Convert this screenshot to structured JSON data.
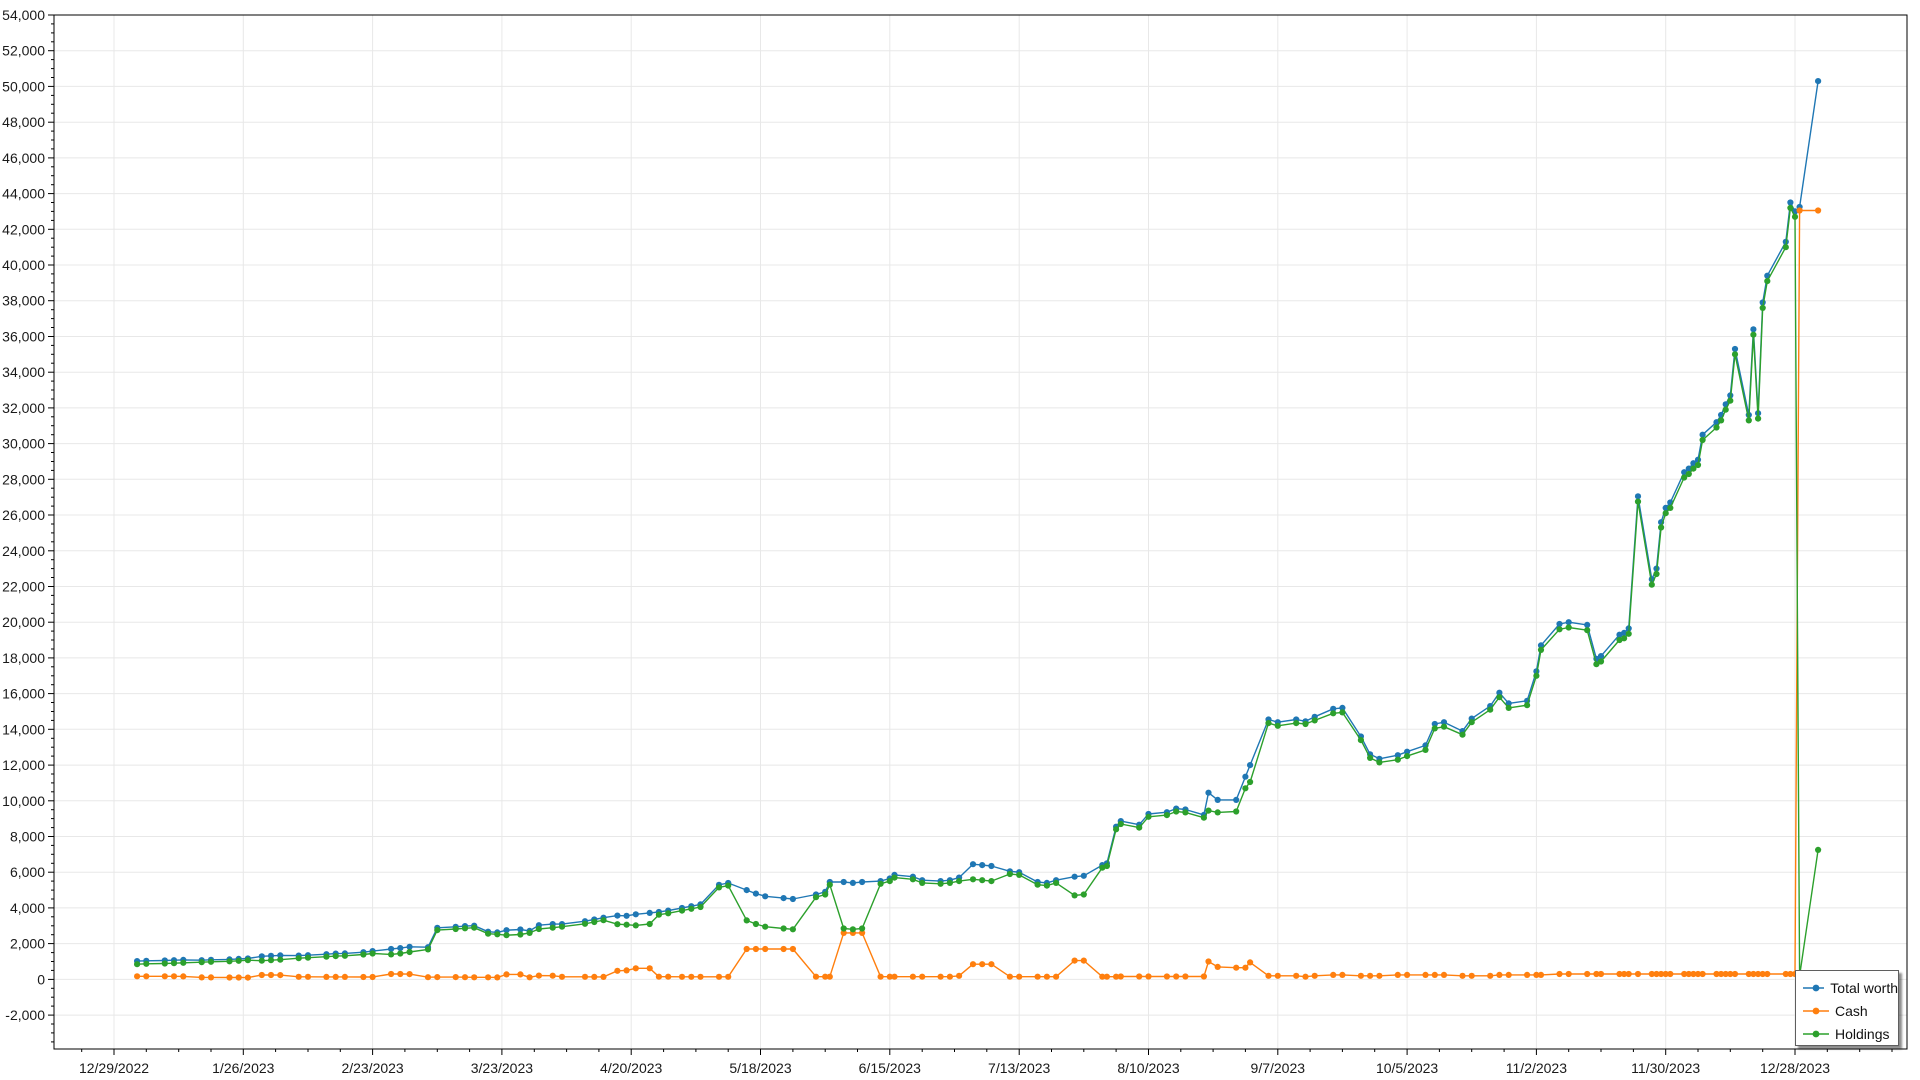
{
  "chart_data": {
    "type": "line",
    "title": "",
    "legend_position": "bottom-right",
    "grid": true,
    "background": "#ffffff",
    "grid_color": "#e8e8e8",
    "axis_color": "#000000",
    "x_axis": {
      "type": "date",
      "tick_labels": [
        "2022-12-29",
        "2023-01-26",
        "2023-02-23",
        "2023-03-23",
        "2023-04-20",
        "2023-05-18",
        "2023-06-15",
        "2023-07-13",
        "2023-08-10",
        "2023-09-07",
        "2023-10-05",
        "2023-11-02",
        "2023-11-30",
        "2023-12-28"
      ],
      "label_format": "M/D/YYYY",
      "major_step_days": 28,
      "minor_step_days": 7,
      "range_days_rel_first_label": [
        -13,
        388
      ]
    },
    "y_axis": {
      "min": -3900,
      "max": 54000,
      "grid_step": 2000,
      "minor_tick": 500,
      "label_min": -2000,
      "label_max": 54000,
      "label_format": "#,##0"
    },
    "dates": [
      "2023-01-03",
      "2023-01-05",
      "2023-01-09",
      "2023-01-11",
      "2023-01-13",
      "2023-01-17",
      "2023-01-19",
      "2023-01-23",
      "2023-01-25",
      "2023-01-27",
      "2023-01-30",
      "2023-02-01",
      "2023-02-03",
      "2023-02-07",
      "2023-02-09",
      "2023-02-13",
      "2023-02-15",
      "2023-02-17",
      "2023-02-21",
      "2023-02-23",
      "2023-02-27",
      "2023-03-01",
      "2023-03-03",
      "2023-03-07",
      "2023-03-09",
      "2023-03-13",
      "2023-03-15",
      "2023-03-17",
      "2023-03-20",
      "2023-03-22",
      "2023-03-24",
      "2023-03-27",
      "2023-03-29",
      "2023-03-31",
      "2023-04-03",
      "2023-04-05",
      "2023-04-10",
      "2023-04-12",
      "2023-04-14",
      "2023-04-17",
      "2023-04-19",
      "2023-04-21",
      "2023-04-24",
      "2023-04-26",
      "2023-04-28",
      "2023-05-01",
      "2023-05-03",
      "2023-05-05",
      "2023-05-09",
      "2023-05-11",
      "2023-05-15",
      "2023-05-17",
      "2023-05-19",
      "2023-05-23",
      "2023-05-25",
      "2023-05-30",
      "2023-06-01",
      "2023-06-02",
      "2023-06-05",
      "2023-06-07",
      "2023-06-09",
      "2023-06-13",
      "2023-06-15",
      "2023-06-16",
      "2023-06-20",
      "2023-06-22",
      "2023-06-26",
      "2023-06-28",
      "2023-06-30",
      "2023-07-03",
      "2023-07-05",
      "2023-07-07",
      "2023-07-11",
      "2023-07-13",
      "2023-07-17",
      "2023-07-19",
      "2023-07-21",
      "2023-07-25",
      "2023-07-27",
      "2023-07-31",
      "2023-08-01",
      "2023-08-03",
      "2023-08-04",
      "2023-08-08",
      "2023-08-10",
      "2023-08-14",
      "2023-08-16",
      "2023-08-18",
      "2023-08-22",
      "2023-08-23",
      "2023-08-25",
      "2023-08-29",
      "2023-08-31",
      "2023-09-01",
      "2023-09-05",
      "2023-09-07",
      "2023-09-11",
      "2023-09-13",
      "2023-09-15",
      "2023-09-19",
      "2023-09-21",
      "2023-09-25",
      "2023-09-27",
      "2023-09-29",
      "2023-10-03",
      "2023-10-05",
      "2023-10-09",
      "2023-10-11",
      "2023-10-13",
      "2023-10-17",
      "2023-10-19",
      "2023-10-23",
      "2023-10-25",
      "2023-10-27",
      "2023-10-31",
      "2023-11-02",
      "2023-11-03",
      "2023-11-07",
      "2023-11-09",
      "2023-11-13",
      "2023-11-15",
      "2023-11-16",
      "2023-11-20",
      "2023-11-21",
      "2023-11-22",
      "2023-11-24",
      "2023-11-27",
      "2023-11-28",
      "2023-11-29",
      "2023-11-30",
      "2023-12-01",
      "2023-12-04",
      "2023-12-05",
      "2023-12-06",
      "2023-12-07",
      "2023-12-08",
      "2023-12-11",
      "2023-12-12",
      "2023-12-13",
      "2023-12-14",
      "2023-12-15",
      "2023-12-18",
      "2023-12-19",
      "2023-12-20",
      "2023-12-21",
      "2023-12-22",
      "2023-12-26",
      "2023-12-27",
      "2023-12-28",
      "2023-12-29",
      "2024-01-02"
    ],
    "series": [
      {
        "name": "Total worth",
        "color": "#1f77b4",
        "values": [
          1020,
          1040,
          1055,
          1075,
          1090,
          1070,
          1095,
          1115,
          1145,
          1170,
          1290,
          1320,
          1340,
          1330,
          1355,
          1410,
          1440,
          1455,
          1520,
          1580,
          1700,
          1750,
          1825,
          1800,
          2885,
          2945,
          2980,
          3005,
          2670,
          2630,
          2750,
          2790,
          2715,
          3030,
          3095,
          3095,
          3255,
          3350,
          3450,
          3570,
          3560,
          3640,
          3720,
          3770,
          3850,
          3995,
          4095,
          4195,
          5295,
          5395,
          5000,
          4800,
          4650,
          4550,
          4500,
          4750,
          4900,
          5450,
          5450,
          5400,
          5450,
          5500,
          5650,
          5850,
          5750,
          5550,
          5500,
          5550,
          5700,
          6450,
          6400,
          6350,
          6050,
          6000,
          5450,
          5400,
          5550,
          5750,
          5800,
          6400,
          6500,
          8550,
          8860,
          8660,
          9260,
          9360,
          9560,
          9510,
          9210,
          10450,
          10050,
          10050,
          11350,
          12000,
          14550,
          14400,
          14550,
          14450,
          14700,
          15150,
          15200,
          13600,
          12600,
          12350,
          12550,
          12750,
          13100,
          14300,
          14400,
          13900,
          14600,
          15300,
          16050,
          15450,
          15600,
          17250,
          18700,
          19900,
          20000,
          19850,
          17950,
          18100,
          19300,
          19400,
          19650,
          27050,
          22400,
          23000,
          25600,
          26400,
          26700,
          28400,
          28600,
          28900,
          29100,
          30500,
          31200,
          31600,
          32200,
          32700,
          35300,
          31600,
          36400,
          31700,
          37900,
          39400,
          41300,
          43500,
          43000,
          43250,
          50300
        ]
      },
      {
        "name": "Cash",
        "color": "#ff7f0e",
        "values": [
          170,
          170,
          170,
          170,
          165,
          110,
          110,
          105,
          105,
          100,
          245,
          245,
          240,
          145,
          145,
          140,
          140,
          135,
          130,
          130,
          300,
          300,
          295,
          120,
          125,
          125,
          120,
          115,
          115,
          110,
          280,
          280,
          115,
          210,
          205,
          145,
          145,
          140,
          140,
          480,
          500,
          620,
          620,
          150,
          150,
          145,
          145,
          145,
          145,
          145,
          1700,
          1700,
          1700,
          1700,
          1700,
          150,
          150,
          150,
          2600,
          2600,
          2600,
          150,
          150,
          150,
          150,
          150,
          150,
          150,
          200,
          850,
          850,
          850,
          150,
          150,
          150,
          150,
          150,
          1050,
          1050,
          150,
          150,
          150,
          160,
          160,
          160,
          160,
          160,
          160,
          160,
          1000,
          700,
          650,
          650,
          950,
          200,
          200,
          200,
          150,
          200,
          250,
          250,
          200,
          200,
          200,
          250,
          250,
          250,
          250,
          250,
          200,
          200,
          200,
          250,
          250,
          250,
          250,
          250,
          300,
          300,
          300,
          300,
          300,
          300,
          300,
          300,
          300,
          300,
          300,
          300,
          300,
          300,
          300,
          300,
          300,
          300,
          300,
          300,
          300,
          300,
          300,
          300,
          300,
          300,
          300,
          300,
          300,
          300,
          300,
          300,
          43050,
          43050
        ]
      },
      {
        "name": "Holdings",
        "color": "#2ca02c",
        "values": [
          850,
          870,
          885,
          905,
          925,
          960,
          985,
          1010,
          1040,
          1070,
          1045,
          1075,
          1100,
          1185,
          1210,
          1270,
          1300,
          1320,
          1390,
          1450,
          1400,
          1450,
          1530,
          1680,
          2760,
          2820,
          2860,
          2890,
          2555,
          2520,
          2470,
          2510,
          2600,
          2820,
          2890,
          2950,
          3110,
          3210,
          3310,
          3090,
          3060,
          3020,
          3100,
          3620,
          3700,
          3850,
          3950,
          4050,
          5150,
          5250,
          3300,
          3100,
          2950,
          2850,
          2800,
          4600,
          4750,
          5300,
          2850,
          2800,
          2850,
          5350,
          5500,
          5700,
          5600,
          5400,
          5350,
          5400,
          5500,
          5600,
          5550,
          5500,
          5900,
          5850,
          5300,
          5250,
          5400,
          4700,
          4750,
          6250,
          6350,
          8400,
          8700,
          8500,
          9100,
          9200,
          9400,
          9350,
          9050,
          9450,
          9350,
          9400,
          10700,
          11050,
          14350,
          14200,
          14350,
          14300,
          14500,
          14900,
          14950,
          13400,
          12400,
          12150,
          12300,
          12500,
          12850,
          14050,
          14150,
          13700,
          14400,
          15100,
          15800,
          15200,
          15350,
          17000,
          18450,
          19600,
          19700,
          19550,
          17650,
          17800,
          19000,
          19100,
          19350,
          26750,
          22100,
          22700,
          25300,
          26100,
          26400,
          28100,
          28300,
          28600,
          28800,
          30200,
          30900,
          31300,
          31900,
          32400,
          35000,
          31300,
          36100,
          31400,
          37600,
          39100,
          41000,
          43200,
          42700,
          200,
          7250
        ]
      }
    ]
  }
}
